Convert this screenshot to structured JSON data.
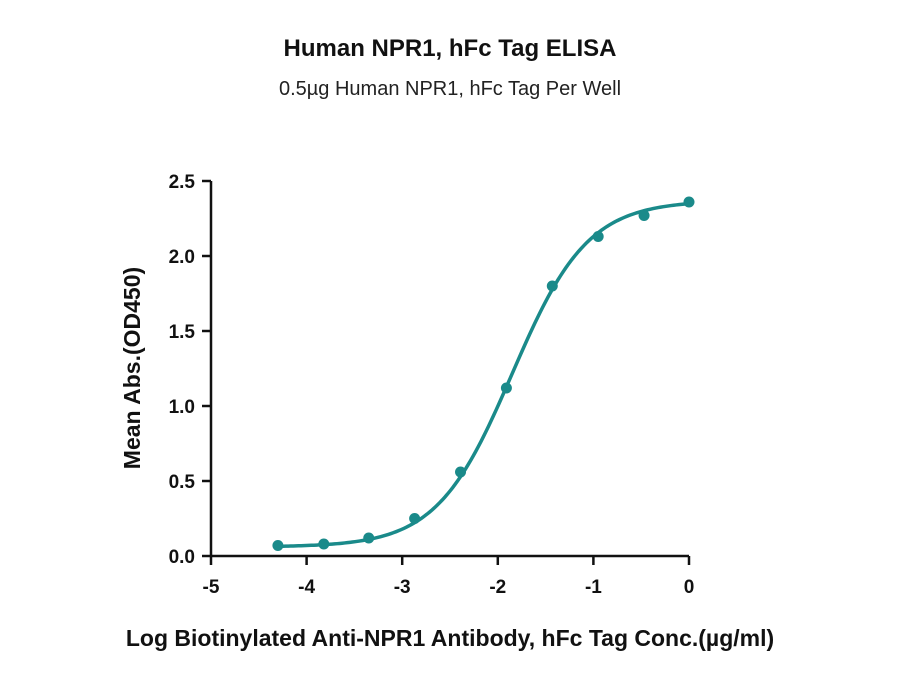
{
  "chart_data": {
    "type": "scatter",
    "title": "Human NPR1, hFc Tag ELISA",
    "subtitle": "0.5µg Human NPR1, hFc Tag Per Well",
    "xlabel": "Log Biotinylated Anti-NPR1 Antibody, hFc Tag Conc.(µg/ml)",
    "ylabel": "Mean Abs.(OD450)",
    "xlim": [
      -5,
      0
    ],
    "ylim": [
      0,
      2.5
    ],
    "x_ticks": [
      "-5",
      "-4",
      "-3",
      "-2",
      "-1",
      "0"
    ],
    "y_ticks": [
      "0.0",
      "0.5",
      "1.0",
      "1.5",
      "2.0",
      "2.5"
    ],
    "grid": false,
    "color": "#1a8a8a",
    "series": [
      {
        "points": [
          {
            "x": -4.3,
            "y": 0.07
          },
          {
            "x": -3.82,
            "y": 0.08
          },
          {
            "x": -3.35,
            "y": 0.12
          },
          {
            "x": -2.87,
            "y": 0.25
          },
          {
            "x": -2.39,
            "y": 0.56
          },
          {
            "x": -1.91,
            "y": 1.12
          },
          {
            "x": -1.43,
            "y": 1.8
          },
          {
            "x": -0.95,
            "y": 2.13
          },
          {
            "x": -0.47,
            "y": 2.27
          },
          {
            "x": 0.0,
            "y": 2.36
          }
        ],
        "fit": {
          "model": "4PL",
          "bottom": 0.06,
          "top": 2.37,
          "logEC50": -1.85,
          "hill": 1.1
        }
      }
    ]
  }
}
